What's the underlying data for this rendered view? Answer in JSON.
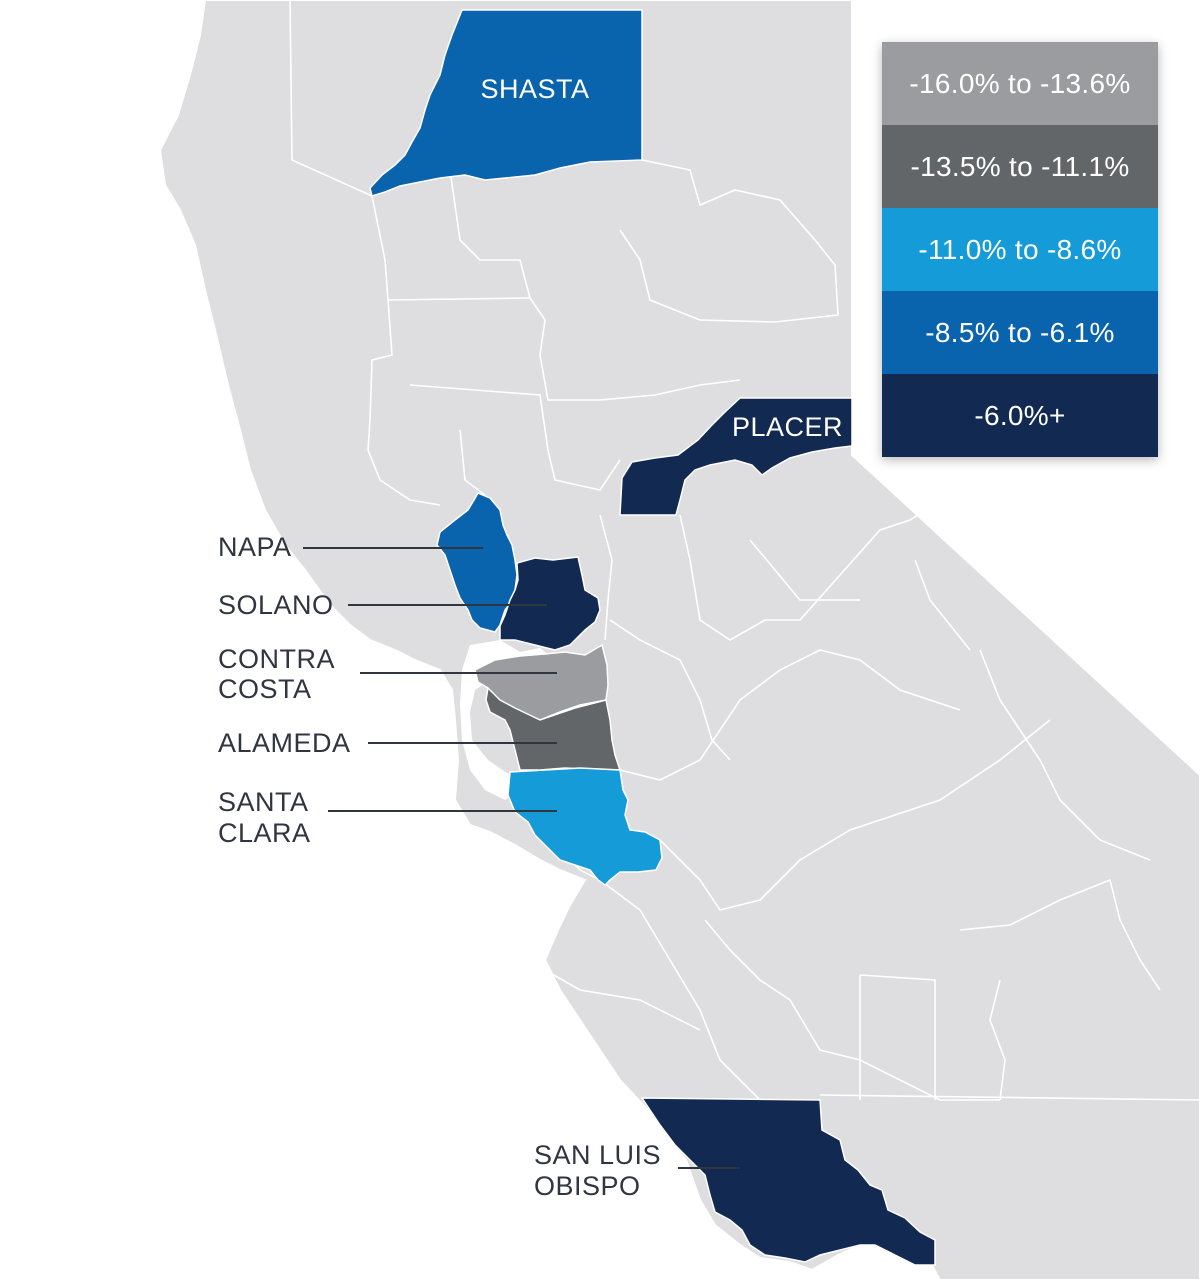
{
  "colors": {
    "land": "#dedee0",
    "border": "#ffffff",
    "bin1": "#9a9c9f",
    "bin2": "#636669",
    "bin3": "#159bd7",
    "bin4": "#0a63ad",
    "bin5": "#122a52",
    "label_text": "#2f3640"
  },
  "legend": [
    {
      "label": "-16.0% to -13.6%",
      "color": "#9a9c9f"
    },
    {
      "label": "-13.5% to -11.1%",
      "color": "#636669"
    },
    {
      "label": "-11.0% to -8.6%",
      "color": "#159bd7"
    },
    {
      "label": "-8.5% to -6.1%",
      "color": "#0a63ad"
    },
    {
      "label": "-6.0%+",
      "color": "#122a52"
    }
  ],
  "counties": {
    "shasta": {
      "label": "SHASTA",
      "bin": "-8.5% to -6.1%"
    },
    "placer": {
      "label": "PLACER",
      "bin": "-6.0%+"
    },
    "napa": {
      "label": "NAPA",
      "bin": "-8.5% to -6.1%"
    },
    "solano": {
      "label": "SOLANO",
      "bin": "-6.0%+"
    },
    "contra_costa": {
      "label_line1": "CONTRA",
      "label_line2": "COSTA",
      "bin": "-16.0% to -13.6%"
    },
    "alameda": {
      "label": "ALAMEDA",
      "bin": "-13.5% to -11.1%"
    },
    "santa_clara": {
      "label_line1": "SANTA",
      "label_line2": "CLARA",
      "bin": "-11.0% to -8.6%"
    },
    "san_luis_obispo": {
      "label_line1": "SAN LUIS",
      "label_line2": "OBISPO",
      "bin": "-6.0%+"
    }
  }
}
